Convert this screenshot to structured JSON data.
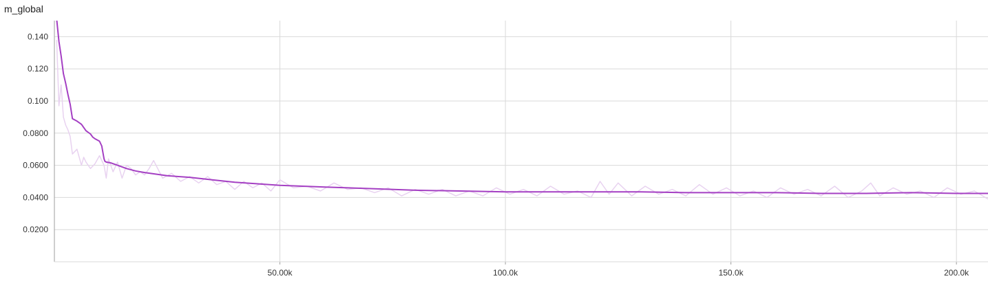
{
  "chart_data": {
    "type": "line",
    "title": "m_global",
    "xlabel": "",
    "ylabel": "",
    "xlim": [
      0,
      207000
    ],
    "ylim": [
      0,
      0.15
    ],
    "x_ticks": [
      50000,
      100000,
      150000,
      200000
    ],
    "x_tick_labels": [
      "50.00k",
      "100.0k",
      "150.0k",
      "200.0k"
    ],
    "y_ticks": [
      0.02,
      0.04,
      0.06,
      0.08,
      0.1,
      0.12,
      0.14
    ],
    "y_tick_labels": [
      "0.0200",
      "0.0400",
      "0.0600",
      "0.0800",
      "0.100",
      "0.120",
      "0.140"
    ],
    "grid": true,
    "colors": {
      "smoothed": "#a43fc3",
      "raw": "#e8d2f0"
    },
    "series": [
      {
        "role": "smoothed",
        "x": [
          500,
          1000,
          1500,
          2000,
          2500,
          3000,
          3500,
          4000,
          5000,
          6000,
          7000,
          8000,
          8500,
          9000,
          10000,
          10500,
          11000,
          11200,
          11500,
          12500,
          14000,
          16000,
          18000,
          20000,
          25000,
          30000,
          35000,
          40000,
          45000,
          50000,
          60000,
          70000,
          80000,
          90000,
          100000,
          110000,
          120000,
          130000,
          140000,
          150000,
          160000,
          170000,
          180000,
          190000,
          200000,
          207000
        ],
        "y": [
          0.151,
          0.137,
          0.128,
          0.117,
          0.111,
          0.104,
          0.098,
          0.089,
          0.0875,
          0.0855,
          0.0815,
          0.0795,
          0.0775,
          0.0765,
          0.075,
          0.072,
          0.064,
          0.0625,
          0.062,
          0.0615,
          0.06,
          0.058,
          0.0565,
          0.0555,
          0.0535,
          0.0525,
          0.051,
          0.0495,
          0.0485,
          0.0475,
          0.0465,
          0.0455,
          0.0445,
          0.044,
          0.0435,
          0.0435,
          0.0435,
          0.0435,
          0.043,
          0.043,
          0.043,
          0.0425,
          0.0425,
          0.043,
          0.0425,
          0.0425
        ]
      },
      {
        "role": "raw",
        "x": [
          500,
          1000,
          1500,
          2000,
          2500,
          3000,
          3500,
          4000,
          5000,
          6000,
          6500,
          7000,
          8000,
          9000,
          10000,
          11000,
          11500,
          12000,
          13000,
          14000,
          15000,
          16000,
          17000,
          18000,
          19000,
          20000,
          21000,
          22000,
          24000,
          26000,
          28000,
          30000,
          32000,
          34000,
          36000,
          38000,
          40000,
          42000,
          44000,
          46000,
          48000,
          50000,
          53000,
          56000,
          59000,
          62000,
          65000,
          68000,
          71000,
          74000,
          77000,
          80000,
          83000,
          86000,
          89000,
          92000,
          95000,
          98000,
          101000,
          104000,
          107000,
          110000,
          113000,
          116000,
          119000,
          121000,
          123000,
          125000,
          128000,
          131000,
          134000,
          137000,
          140000,
          143000,
          146000,
          149000,
          152000,
          155000,
          158000,
          161000,
          164000,
          167000,
          170000,
          173000,
          176000,
          179000,
          181000,
          183000,
          186000,
          189000,
          192000,
          195000,
          198000,
          201000,
          204000,
          207000
        ],
        "y": [
          0.138,
          0.097,
          0.11,
          0.09,
          0.085,
          0.082,
          0.078,
          0.067,
          0.07,
          0.06,
          0.065,
          0.062,
          0.058,
          0.061,
          0.066,
          0.06,
          0.052,
          0.064,
          0.056,
          0.062,
          0.052,
          0.06,
          0.058,
          0.054,
          0.056,
          0.054,
          0.058,
          0.063,
          0.052,
          0.055,
          0.05,
          0.053,
          0.049,
          0.053,
          0.048,
          0.05,
          0.045,
          0.05,
          0.046,
          0.049,
          0.044,
          0.051,
          0.046,
          0.047,
          0.044,
          0.049,
          0.045,
          0.046,
          0.043,
          0.046,
          0.041,
          0.045,
          0.042,
          0.045,
          0.041,
          0.044,
          0.041,
          0.046,
          0.042,
          0.045,
          0.041,
          0.047,
          0.042,
          0.044,
          0.04,
          0.05,
          0.042,
          0.049,
          0.041,
          0.047,
          0.042,
          0.045,
          0.041,
          0.048,
          0.042,
          0.046,
          0.041,
          0.044,
          0.04,
          0.046,
          0.042,
          0.045,
          0.041,
          0.047,
          0.04,
          0.044,
          0.049,
          0.041,
          0.046,
          0.042,
          0.044,
          0.04,
          0.046,
          0.042,
          0.044,
          0.039
        ]
      }
    ]
  }
}
